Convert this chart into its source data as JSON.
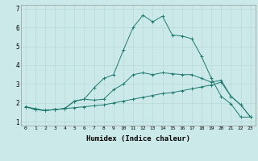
{
  "xlabel": "Humidex (Indice chaleur)",
  "background_color": "#cce9ea",
  "grid_color": "#b8d8d9",
  "line_color": "#1e7a6e",
  "xlim": [
    -0.5,
    23.5
  ],
  "ylim": [
    0.8,
    7.2
  ],
  "yticks": [
    1,
    2,
    3,
    4,
    5,
    6,
    7
  ],
  "xticks": [
    0,
    1,
    2,
    3,
    4,
    5,
    6,
    7,
    8,
    9,
    10,
    11,
    12,
    13,
    14,
    15,
    16,
    17,
    18,
    19,
    20,
    21,
    22,
    23
  ],
  "series1_x": [
    0,
    1,
    2,
    3,
    4,
    5,
    6,
    7,
    8,
    9,
    10,
    11,
    12,
    13,
    14,
    15,
    16,
    17,
    18,
    19,
    20,
    21,
    22,
    23
  ],
  "series1_y": [
    1.8,
    1.7,
    1.6,
    1.65,
    1.7,
    1.75,
    1.8,
    1.85,
    1.9,
    2.0,
    2.1,
    2.2,
    2.3,
    2.4,
    2.5,
    2.55,
    2.65,
    2.75,
    2.85,
    2.95,
    3.1,
    2.35,
    1.9,
    1.25
  ],
  "series2_x": [
    0,
    1,
    2,
    3,
    4,
    5,
    6,
    7,
    8,
    9,
    10,
    11,
    12,
    13,
    14,
    15,
    16,
    17,
    18,
    19,
    20,
    21,
    22,
    23
  ],
  "series2_y": [
    1.8,
    1.65,
    1.6,
    1.65,
    1.7,
    2.1,
    2.2,
    2.15,
    2.2,
    2.7,
    3.0,
    3.5,
    3.6,
    3.5,
    3.6,
    3.55,
    3.5,
    3.5,
    3.3,
    3.1,
    3.2,
    2.35,
    1.9,
    1.25
  ],
  "series3_x": [
    0,
    1,
    2,
    3,
    4,
    5,
    6,
    7,
    8,
    9,
    10,
    11,
    12,
    13,
    14,
    15,
    16,
    17,
    18,
    19,
    20,
    21,
    22,
    23
  ],
  "series3_y": [
    1.8,
    1.65,
    1.6,
    1.65,
    1.7,
    2.1,
    2.2,
    2.8,
    3.3,
    3.5,
    4.8,
    6.0,
    6.65,
    6.3,
    6.6,
    5.6,
    5.55,
    5.4,
    4.45,
    3.3,
    2.35,
    1.95,
    1.25,
    1.25
  ]
}
